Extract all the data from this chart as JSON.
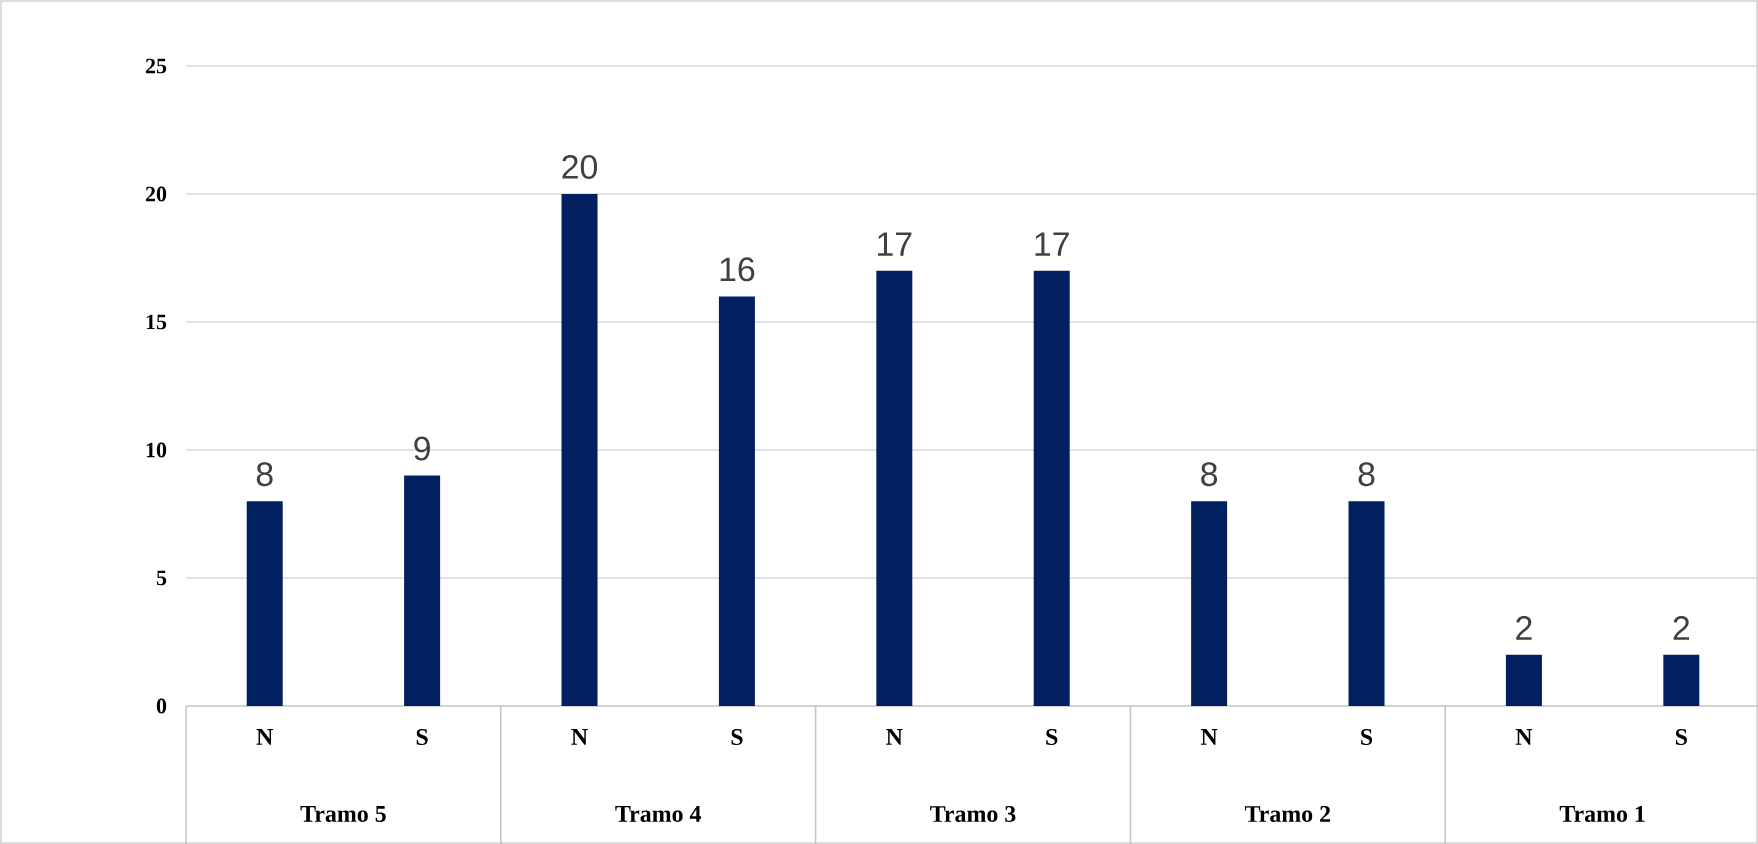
{
  "chart_data": {
    "type": "bar",
    "categories": [
      "N",
      "S",
      "N",
      "S",
      "N",
      "S",
      "N",
      "S",
      "N",
      "S"
    ],
    "values": [
      8,
      9,
      20,
      16,
      17,
      17,
      8,
      8,
      2,
      2
    ],
    "color": "#002060",
    "ylim": [
      0,
      25
    ],
    "yticks": [
      0,
      5,
      10,
      15,
      20,
      25
    ],
    "grid": "y",
    "data_labels": true,
    "annotations": [
      "Tramo 5",
      "Tramo 4",
      "Tramo 3",
      "Tramo 2",
      "Tramo 1"
    ]
  }
}
